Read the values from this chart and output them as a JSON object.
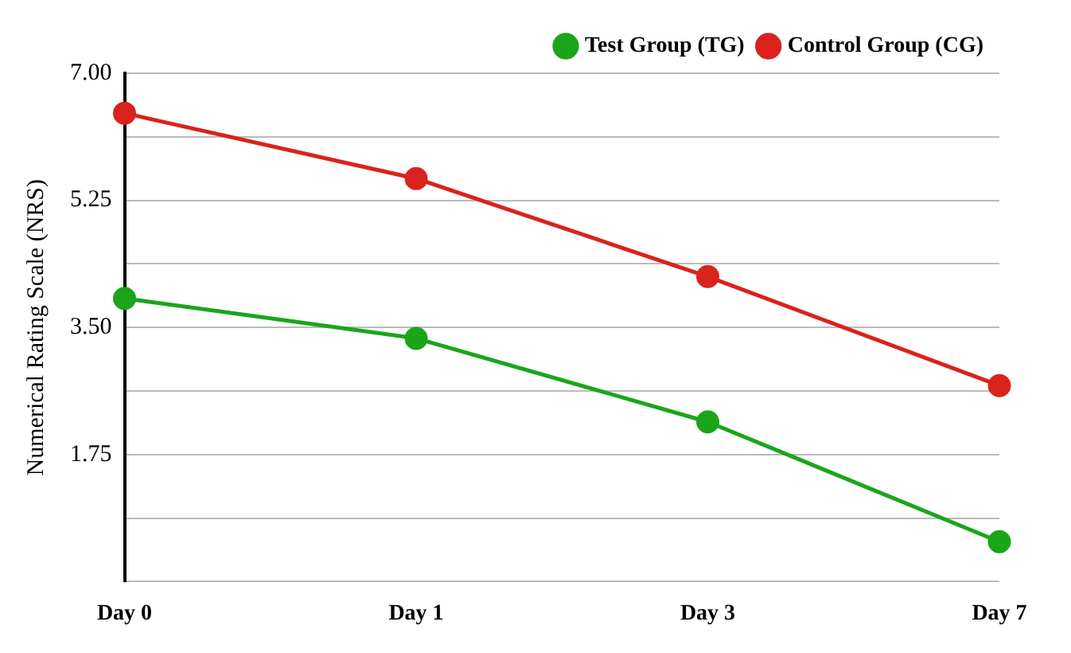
{
  "chart_data": {
    "type": "line",
    "ylabel": "Numerical Rating Scale (NRS)",
    "categories": [
      "Day 0",
      "Day 1",
      "Day 3",
      "Day 7"
    ],
    "series": [
      {
        "name": "Test Group (TG)",
        "color": "#1aa51a",
        "values": [
          3.9,
          3.35,
          2.2,
          0.55
        ]
      },
      {
        "name": "Control Group (CG)",
        "color": "#d9231c",
        "values": [
          6.45,
          5.55,
          4.2,
          2.7
        ]
      }
    ],
    "ylim": [
      0,
      7
    ],
    "yticks": [
      {
        "value": 0,
        "label": null
      },
      {
        "value": 0.875,
        "label": null
      },
      {
        "value": 1.75,
        "label": "1.75"
      },
      {
        "value": 2.625,
        "label": null
      },
      {
        "value": 3.5,
        "label": "3.50"
      },
      {
        "value": 4.375,
        "label": null
      },
      {
        "value": 5.25,
        "label": "5.25"
      },
      {
        "value": 6.125,
        "label": null
      },
      {
        "value": 7,
        "label": "7.00"
      }
    ],
    "grid": "y",
    "legend": "top right",
    "marker": "circle",
    "line_style": "solid"
  }
}
